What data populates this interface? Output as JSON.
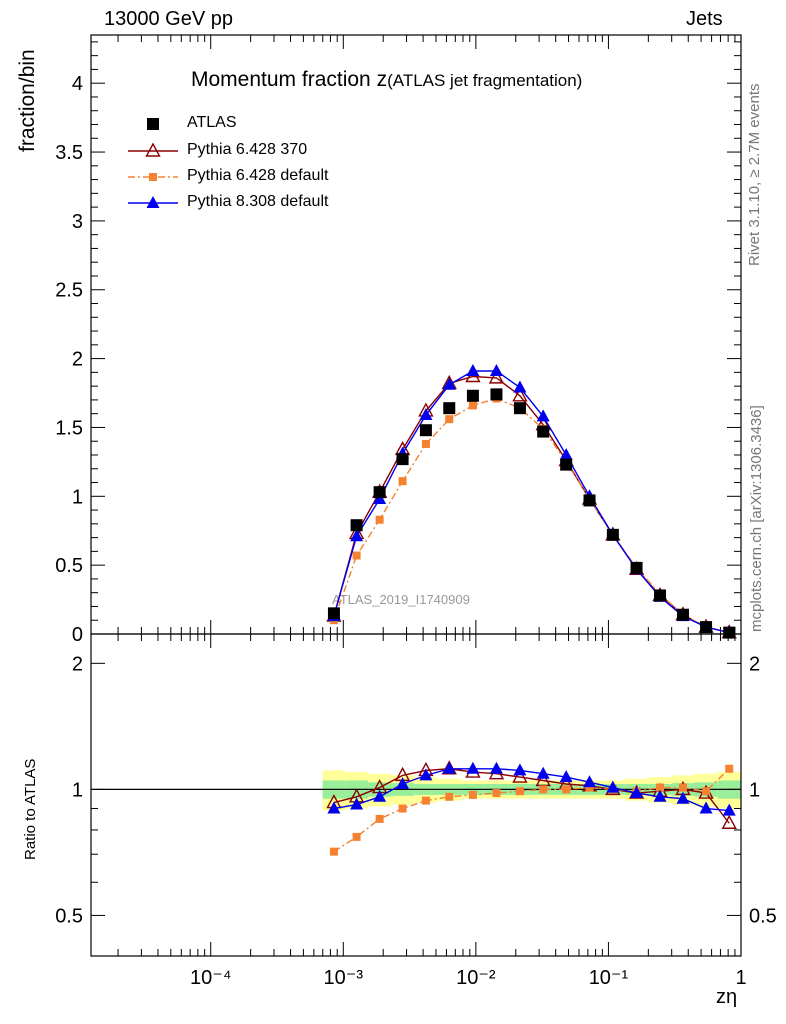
{
  "header": {
    "left": "13000 GeV pp",
    "right": "Jets"
  },
  "side_labels": {
    "top": "Rivet 3.1.10, ≥ 2.7M events",
    "bottom": "mcplots.cern.ch [arXiv:1306.3436]"
  },
  "watermark": "ATLAS_2019_I1740909",
  "chart_data": [
    {
      "type": "scatter",
      "title": "Momentum fraction z",
      "subtitle": "(ATLAS jet fragmentation)",
      "ylabel": "fraction/bin",
      "xscale": "log",
      "xlim": [
        1.25e-05,
        1
      ],
      "ylim": [
        0,
        4.35
      ],
      "yticks": [
        "0",
        "0.5",
        "1",
        "1.5",
        "2",
        "2.5",
        "3",
        "3.5",
        "4"
      ],
      "legend_placement": "top-left",
      "x": [
        0.00085,
        0.00126,
        0.00188,
        0.0028,
        0.0042,
        0.0063,
        0.0095,
        0.0143,
        0.0215,
        0.0322,
        0.048,
        0.072,
        0.108,
        0.163,
        0.245,
        0.365,
        0.545,
        0.815
      ],
      "series": [
        {
          "name": "ATLAS",
          "marker": "square",
          "color": "#000000",
          "values": [
            0.15,
            0.79,
            1.03,
            1.27,
            1.48,
            1.64,
            1.73,
            1.74,
            1.64,
            1.47,
            1.23,
            0.97,
            0.72,
            0.48,
            0.28,
            0.14,
            0.05,
            0.01
          ]
        },
        {
          "name": "Pythia 6.428 370",
          "marker": "open-triangle",
          "color": "#8b0000",
          "values": [
            0.13,
            0.73,
            1.03,
            1.34,
            1.62,
            1.82,
            1.87,
            1.86,
            1.73,
            1.52,
            1.26,
            0.98,
            0.72,
            0.47,
            0.28,
            0.14,
            0.05,
            0.01
          ]
        },
        {
          "name": "Pythia 6.428 default",
          "marker": "small-square",
          "color": "#f58231",
          "dash": true,
          "values": [
            0.1,
            0.57,
            0.83,
            1.11,
            1.38,
            1.56,
            1.66,
            1.71,
            1.64,
            1.49,
            1.25,
            0.98,
            0.72,
            0.48,
            0.29,
            0.14,
            0.05,
            0.01
          ]
        },
        {
          "name": "Pythia 8.308 default",
          "marker": "triangle",
          "color": "#0000ee",
          "values": [
            0.13,
            0.71,
            0.98,
            1.31,
            1.59,
            1.81,
            1.91,
            1.91,
            1.79,
            1.58,
            1.3,
            1.0,
            0.72,
            0.47,
            0.27,
            0.13,
            0.05,
            0.01
          ]
        }
      ]
    },
    {
      "type": "scatter",
      "ylabel": "Ratio to ATLAS",
      "xlabel": "zη",
      "xscale": "log",
      "yscale": "log",
      "xlim": [
        1.25e-05,
        1
      ],
      "ylim": [
        0.4,
        2.35
      ],
      "yticks": [
        "0.5",
        "1",
        "2"
      ],
      "xticks": [
        "10⁻⁴",
        "10⁻³",
        "10⁻²",
        "10⁻¹",
        "1"
      ],
      "reference_line": 1,
      "band_inner": [
        0.05,
        0.05,
        0.04,
        0.035,
        0.03,
        0.03,
        0.03,
        0.03,
        0.03,
        0.03,
        0.03,
        0.03,
        0.03,
        0.03,
        0.03,
        0.035,
        0.04,
        0.05
      ],
      "band_outer": [
        0.11,
        0.1,
        0.09,
        0.08,
        0.07,
        0.06,
        0.05,
        0.05,
        0.05,
        0.05,
        0.05,
        0.05,
        0.05,
        0.06,
        0.07,
        0.08,
        0.09,
        0.1
      ],
      "series": [
        {
          "name": "Pythia 6.428 370",
          "values": [
            0.93,
            0.96,
            1.01,
            1.08,
            1.11,
            1.12,
            1.1,
            1.09,
            1.07,
            1.05,
            1.03,
            1.02,
            1.0,
            0.98,
            0.99,
            1.0,
            0.98,
            0.83
          ]
        },
        {
          "name": "Pythia 6.428 default",
          "values": [
            0.71,
            0.77,
            0.85,
            0.9,
            0.94,
            0.96,
            0.97,
            0.98,
            0.99,
            1.0,
            1.0,
            1.01,
            1.0,
            0.99,
            1.01,
            1.01,
            0.99,
            1.12
          ]
        },
        {
          "name": "Pythia 8.308 default",
          "values": [
            0.9,
            0.92,
            0.96,
            1.03,
            1.08,
            1.12,
            1.12,
            1.12,
            1.11,
            1.09,
            1.07,
            1.04,
            1.01,
            0.98,
            0.96,
            0.95,
            0.9,
            0.89
          ]
        }
      ]
    }
  ]
}
